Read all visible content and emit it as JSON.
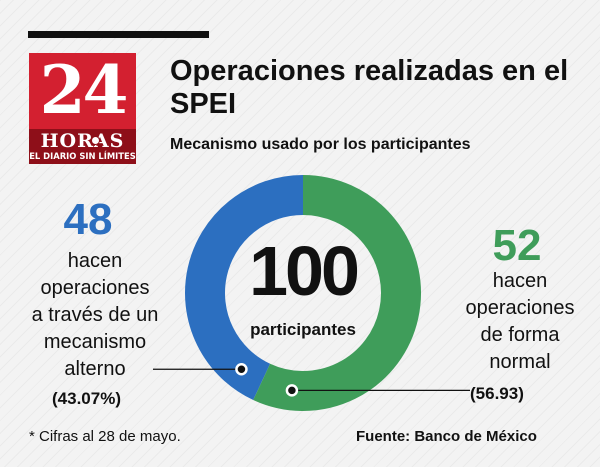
{
  "logo": {
    "number": "24",
    "word": "HORAS",
    "tagline": "EL DIARIO SIN LÍMITES"
  },
  "colors": {
    "brand_red": "#d32030",
    "brand_dark_red": "#8e0f19",
    "blue": "#2c6fc0",
    "green": "#3f9d5a"
  },
  "chart_data": {
    "type": "pie",
    "title": "Operaciones realizadas en el SPEI",
    "subtitle": "Mecanismo usado por los participantes",
    "total": {
      "value": "100",
      "label": "participantes"
    },
    "series": [
      {
        "count": "48",
        "description": "hacen operaciones a través de un mecanismo alterno",
        "lines": [
          "hacen",
          "operaciones",
          "a través de un",
          "mecanismo",
          "alterno"
        ],
        "percent_label": "(43.07%)",
        "percent": 43.07,
        "color": "#2c6fc0"
      },
      {
        "count": "52",
        "description": "hacen operaciones de forma normal",
        "lines": [
          "hacen",
          "operaciones",
          "de forma",
          "normal"
        ],
        "percent_label": "(56.93)",
        "percent": 56.93,
        "color": "#3f9d5a"
      }
    ],
    "legend": "none"
  },
  "footnote": "* Cifras al 28 de mayo.",
  "source": "Fuente: Banco de México"
}
